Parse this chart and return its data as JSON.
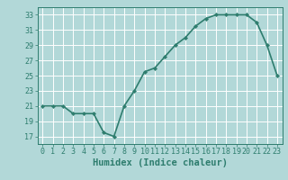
{
  "x": [
    0,
    1,
    2,
    3,
    4,
    5,
    6,
    7,
    8,
    9,
    10,
    11,
    12,
    13,
    14,
    15,
    16,
    17,
    18,
    19,
    20,
    21,
    22,
    23
  ],
  "y": [
    21,
    21,
    21,
    20,
    20,
    20,
    17.5,
    17,
    21,
    23,
    25.5,
    26,
    27.5,
    29,
    30,
    31.5,
    32.5,
    33,
    33,
    33,
    33,
    32,
    29,
    25
  ],
  "line_color": "#2e7d6e",
  "marker": "D",
  "marker_size": 2.2,
  "bg_color": "#b2d8d8",
  "grid_color": "#ffffff",
  "xlabel": "Humidex (Indice chaleur)",
  "xlabel_fontsize": 7.5,
  "ylim": [
    16,
    34
  ],
  "xlim": [
    -0.5,
    23.5
  ],
  "yticks": [
    17,
    19,
    21,
    23,
    25,
    27,
    29,
    31,
    33
  ],
  "xticks": [
    0,
    1,
    2,
    3,
    4,
    5,
    6,
    7,
    8,
    9,
    10,
    11,
    12,
    13,
    14,
    15,
    16,
    17,
    18,
    19,
    20,
    21,
    22,
    23
  ],
  "tick_fontsize": 6,
  "tick_color": "#2e7d6e",
  "line_width": 1.2
}
